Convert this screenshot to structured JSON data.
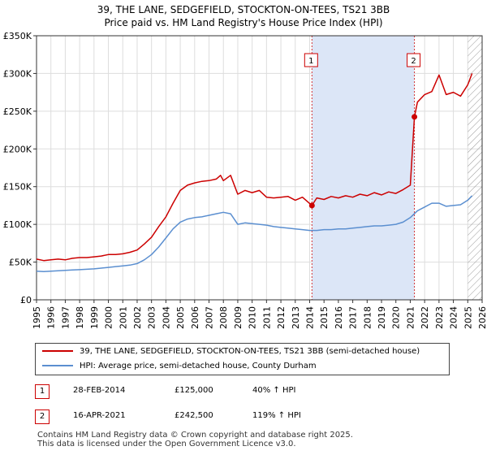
{
  "title_line1": "39, THE LANE, SEDGEFIELD, STOCKTON-ON-TEES, TS21 3BB",
  "title_line2": "Price paid vs. HM Land Registry's House Price Index (HPI)",
  "colors": {
    "price": "#cc0000",
    "hpi": "#5b8fd0",
    "shade": "#dce6f7",
    "grid": "#dddddd",
    "hatch": "#999999"
  },
  "chart_data": {
    "type": "line",
    "xlim": [
      1995,
      2026
    ],
    "ylim": [
      0,
      350000
    ],
    "y_ticks": [
      {
        "v": 0,
        "label": "£0"
      },
      {
        "v": 50000,
        "label": "£50K"
      },
      {
        "v": 100000,
        "label": "£100K"
      },
      {
        "v": 150000,
        "label": "£150K"
      },
      {
        "v": 200000,
        "label": "£200K"
      },
      {
        "v": 250000,
        "label": "£250K"
      },
      {
        "v": 300000,
        "label": "£300K"
      },
      {
        "v": 350000,
        "label": "£350K"
      }
    ],
    "x_ticks": [
      "1995",
      "1996",
      "1997",
      "1998",
      "1999",
      "2000",
      "2001",
      "2002",
      "2003",
      "2004",
      "2005",
      "2006",
      "2007",
      "2008",
      "2009",
      "2010",
      "2011",
      "2012",
      "2013",
      "2014",
      "2015",
      "2016",
      "2017",
      "2018",
      "2019",
      "2020",
      "2021",
      "2022",
      "2023",
      "2024",
      "2025",
      "2026"
    ],
    "shaded_range": [
      2014.16,
      2021.29
    ],
    "hatched_from": 2025.0,
    "series": [
      {
        "name": "39, THE LANE, SEDGEFIELD, STOCKTON-ON-TEES, TS21 3BB (semi-detached house)",
        "x": [
          1995.0,
          1995.5,
          1996.0,
          1996.5,
          1997.0,
          1997.5,
          1998.0,
          1998.5,
          1999.0,
          1999.5,
          2000.0,
          2000.5,
          2001.0,
          2001.5,
          2002.0,
          2002.5,
          2003.0,
          2003.5,
          2004.0,
          2004.5,
          2005.0,
          2005.5,
          2006.0,
          2006.5,
          2007.0,
          2007.5,
          2007.8,
          2008.0,
          2008.5,
          2009.0,
          2009.5,
          2010.0,
          2010.5,
          2011.0,
          2011.5,
          2012.0,
          2012.5,
          2013.0,
          2013.5,
          2014.16,
          2014.5,
          2015.0,
          2015.5,
          2016.0,
          2016.5,
          2017.0,
          2017.5,
          2018.0,
          2018.5,
          2019.0,
          2019.5,
          2020.0,
          2020.5,
          2021.0,
          2021.29,
          2021.5,
          2022.0,
          2022.5,
          2023.0,
          2023.5,
          2024.0,
          2024.5,
          2025.0,
          2025.3
        ],
        "y": [
          54000,
          52000,
          53000,
          54000,
          53000,
          55000,
          56000,
          56000,
          57000,
          58000,
          60000,
          60000,
          61000,
          63000,
          66000,
          74000,
          83000,
          97000,
          110000,
          128000,
          145000,
          152000,
          155000,
          157000,
          158000,
          160000,
          165000,
          158000,
          165000,
          140000,
          145000,
          142000,
          145000,
          136000,
          135000,
          136000,
          137000,
          132000,
          136000,
          125000,
          135000,
          133000,
          137000,
          135000,
          138000,
          136000,
          140000,
          138000,
          142000,
          139000,
          143000,
          141000,
          146000,
          152000,
          242500,
          262000,
          272000,
          276000,
          298000,
          272000,
          275000,
          270000,
          285000,
          300000
        ]
      },
      {
        "name": "HPI: Average price, semi-detached house, County Durham",
        "x": [
          1995.0,
          1995.5,
          1996.0,
          1996.5,
          1997.0,
          1997.5,
          1998.0,
          1998.5,
          1999.0,
          1999.5,
          2000.0,
          2000.5,
          2001.0,
          2001.5,
          2002.0,
          2002.5,
          2003.0,
          2003.5,
          2004.0,
          2004.5,
          2005.0,
          2005.5,
          2006.0,
          2006.5,
          2007.0,
          2007.5,
          2008.0,
          2008.5,
          2009.0,
          2009.5,
          2010.0,
          2010.5,
          2011.0,
          2011.5,
          2012.0,
          2012.5,
          2013.0,
          2013.5,
          2014.0,
          2014.5,
          2015.0,
          2015.5,
          2016.0,
          2016.5,
          2017.0,
          2017.5,
          2018.0,
          2018.5,
          2019.0,
          2019.5,
          2020.0,
          2020.5,
          2021.0,
          2021.5,
          2022.0,
          2022.5,
          2023.0,
          2023.5,
          2024.0,
          2024.5,
          2025.0,
          2025.3
        ],
        "y": [
          38000,
          37500,
          38000,
          38500,
          39000,
          39500,
          40000,
          40500,
          41000,
          42000,
          43000,
          44000,
          45000,
          46000,
          48000,
          53000,
          60000,
          70000,
          82000,
          94000,
          103000,
          107000,
          109000,
          110000,
          112000,
          114000,
          116000,
          114000,
          100000,
          102000,
          101000,
          100000,
          99000,
          97000,
          96000,
          95000,
          94000,
          93000,
          92000,
          92000,
          93000,
          93000,
          94000,
          94000,
          95000,
          96000,
          97000,
          98000,
          98000,
          99000,
          100000,
          103000,
          109000,
          118000,
          123000,
          128000,
          128000,
          124000,
          125000,
          126000,
          132000,
          138000
        ]
      }
    ],
    "transactions": [
      {
        "num": "1",
        "x": 2014.16,
        "y": 125000,
        "date": "28-FEB-2014",
        "price": "£125,000",
        "hpi": "40% ↑ HPI"
      },
      {
        "num": "2",
        "x": 2021.29,
        "y": 242500,
        "date": "16-APR-2021",
        "price": "£242,500",
        "hpi": "119% ↑ HPI"
      }
    ]
  },
  "footer_line1": "Contains HM Land Registry data © Crown copyright and database right 2025.",
  "footer_line2": "This data is licensed under the Open Government Licence v3.0."
}
